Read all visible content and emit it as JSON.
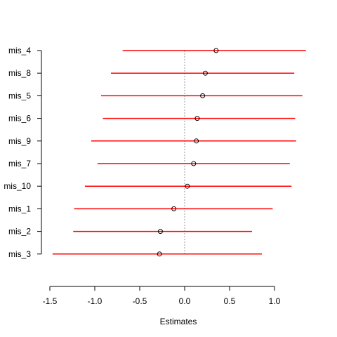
{
  "chart_data": {
    "type": "scatter",
    "subtype": "forest-plot",
    "title": "",
    "xlabel": "Estimates",
    "ylabel": "",
    "xlim": [
      -1.5,
      1.0
    ],
    "x_ticks": [
      -1.5,
      -1.0,
      -0.5,
      0.0,
      0.5,
      1.0
    ],
    "x_tick_labels": [
      "-1.5",
      "-1.0",
      "-0.5",
      "0.0",
      "0.5",
      "1.0"
    ],
    "reference_line": 0.0,
    "series": [
      {
        "name": "mis_4",
        "estimate": 0.35,
        "lower": -0.69,
        "upper": 1.35
      },
      {
        "name": "mis_8",
        "estimate": 0.23,
        "lower": -0.82,
        "upper": 1.22
      },
      {
        "name": "mis_5",
        "estimate": 0.2,
        "lower": -0.93,
        "upper": 1.31
      },
      {
        "name": "mis_6",
        "estimate": 0.14,
        "lower": -0.91,
        "upper": 1.23
      },
      {
        "name": "mis_9",
        "estimate": 0.13,
        "lower": -1.04,
        "upper": 1.24
      },
      {
        "name": "mis_7",
        "estimate": 0.1,
        "lower": -0.97,
        "upper": 1.17
      },
      {
        "name": "mis_10",
        "estimate": 0.03,
        "lower": -1.11,
        "upper": 1.19
      },
      {
        "name": "mis_1",
        "estimate": -0.12,
        "lower": -1.23,
        "upper": 0.98
      },
      {
        "name": "mis_2",
        "estimate": -0.27,
        "lower": -1.24,
        "upper": 0.75
      },
      {
        "name": "mis_3",
        "estimate": -0.28,
        "lower": -1.47,
        "upper": 0.86
      }
    ],
    "colors": {
      "interval": "#ff0000",
      "point": "#000000",
      "reference": "#999999",
      "axis": "#000000"
    }
  }
}
